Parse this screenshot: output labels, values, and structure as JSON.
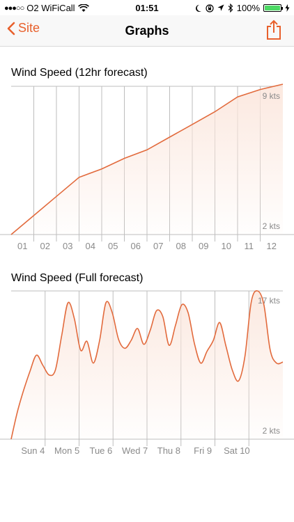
{
  "status": {
    "carrier": "O2 WiFiCall",
    "signal_dots": "●●●○○",
    "time": "01:51",
    "battery": "100%"
  },
  "nav": {
    "back_label": "Site",
    "title": "Graphs"
  },
  "colors": {
    "accent": "#e8602c",
    "line": "#e26a3c",
    "fill": "#fbe6dc",
    "grid": "#bdbdbd"
  },
  "chart_data": [
    {
      "type": "area",
      "title": "Wind Speed (12hr forecast)",
      "x": [
        0,
        1,
        2,
        3,
        4,
        5,
        6,
        7,
        8,
        9,
        10,
        11,
        12
      ],
      "values": [
        2.0,
        2.9,
        3.8,
        4.7,
        5.1,
        5.6,
        6.0,
        6.6,
        7.2,
        7.8,
        8.5,
        8.85,
        9.1
      ],
      "tick_labels": [
        "01",
        "02",
        "03",
        "04",
        "05",
        "06",
        "07",
        "08",
        "09",
        "10",
        "11",
        "12"
      ],
      "ymin_label": "2 kts",
      "ymax_label": "9 kts",
      "ylim": [
        2,
        9
      ]
    },
    {
      "type": "area",
      "title": "Wind Speed (Full forecast)",
      "values": [
        2.0,
        4.8,
        7.0,
        8.9,
        10.5,
        9.5,
        8.5,
        9.0,
        12.5,
        15.8,
        14.2,
        11.0,
        11.9,
        9.7,
        12.0,
        15.8,
        14.8,
        12.1,
        11.2,
        12.0,
        13.2,
        11.6,
        13.0,
        15.0,
        14.4,
        11.5,
        13.5,
        15.6,
        14.8,
        11.7,
        9.7,
        10.9,
        12.0,
        13.8,
        11.4,
        9.0,
        7.9,
        10.4,
        15.9,
        17.0,
        15.6,
        11.0,
        9.7,
        9.8
      ],
      "day_labels": [
        "Sun 4",
        "Mon 5",
        "Tue 6",
        "Wed 7",
        "Thu 8",
        "Fri 9",
        "Sat 10"
      ],
      "ymin_label": "2 kts",
      "ymax_label": "17 kts",
      "ylim": [
        2,
        17
      ]
    }
  ]
}
